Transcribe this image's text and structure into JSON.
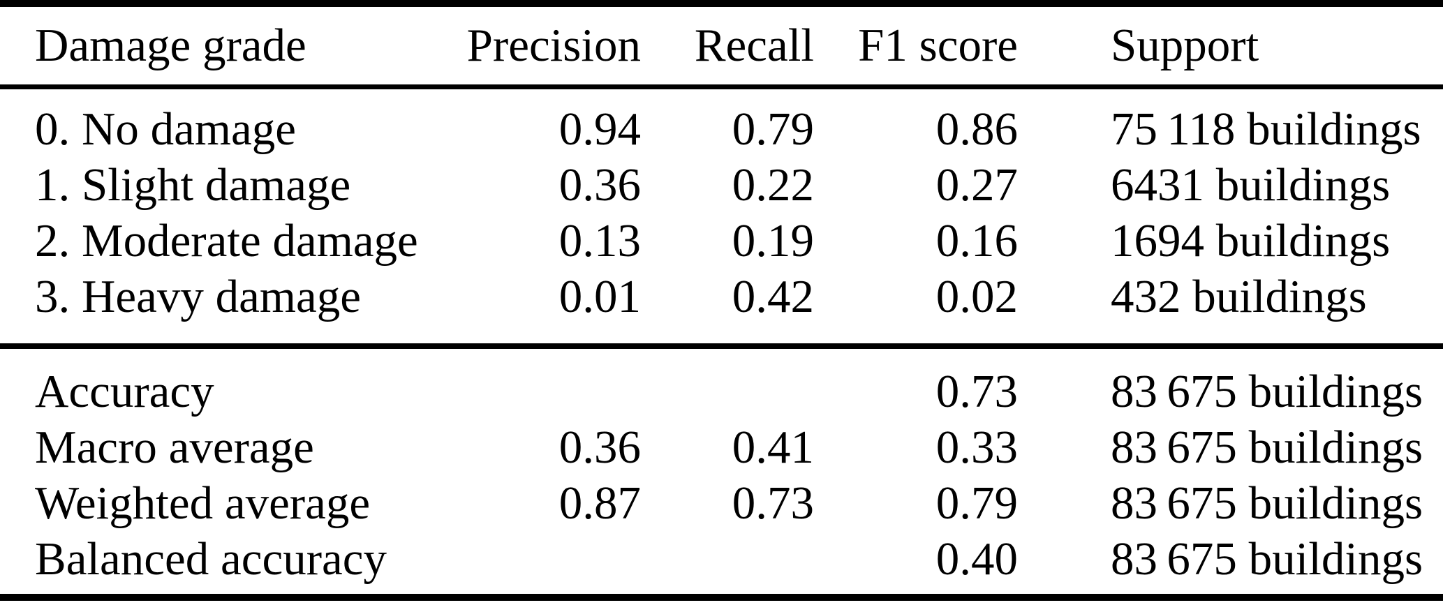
{
  "table": {
    "columns": [
      "Damage grade",
      "Precision",
      "Recall",
      "F1 score",
      "Support"
    ],
    "rows": [
      {
        "label": "0. No damage",
        "precision": "0.94",
        "recall": "0.79",
        "f1": "0.86",
        "support": "75 118 buildings"
      },
      {
        "label": "1. Slight damage",
        "precision": "0.36",
        "recall": "0.22",
        "f1": "0.27",
        "support": "6431 buildings"
      },
      {
        "label": "2. Moderate damage",
        "precision": "0.13",
        "recall": "0.19",
        "f1": "0.16",
        "support": "1694 buildings"
      },
      {
        "label": "3. Heavy damage",
        "precision": "0.01",
        "recall": "0.42",
        "f1": "0.02",
        "support": "432 buildings"
      }
    ],
    "summary_rows": [
      {
        "label": "Accuracy",
        "precision": "",
        "recall": "",
        "f1": "0.73",
        "support": "83 675 buildings"
      },
      {
        "label": "Macro average",
        "precision": "0.36",
        "recall": "0.41",
        "f1": "0.33",
        "support": "83 675 buildings"
      },
      {
        "label": "Weighted average",
        "precision": "0.87",
        "recall": "0.73",
        "f1": "0.79",
        "support": "83 675 buildings"
      },
      {
        "label": "Balanced accuracy",
        "precision": "",
        "recall": "",
        "f1": "0.40",
        "support": "83 675 buildings"
      }
    ],
    "colors": {
      "text": "#000000",
      "background": "#ffffff",
      "rule": "#000000"
    }
  }
}
